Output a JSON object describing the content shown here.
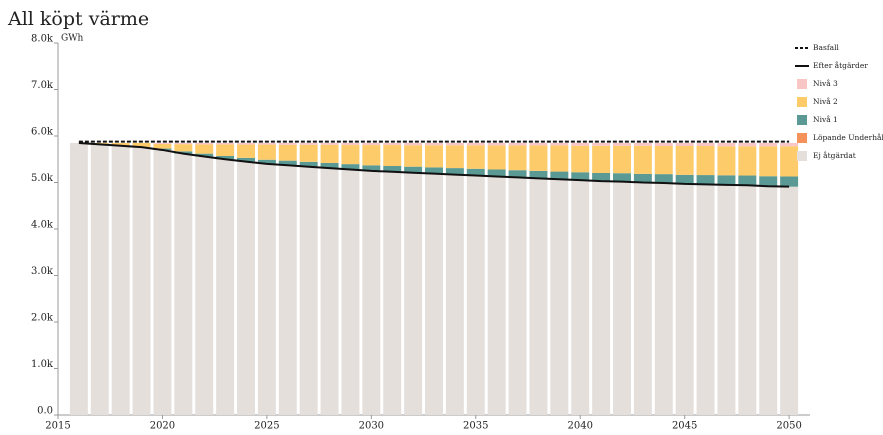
{
  "chart_data": {
    "type": "bar",
    "title": "All köpt värme",
    "y_unit": "GWh",
    "x": [
      2016,
      2017,
      2018,
      2019,
      2020,
      2021,
      2022,
      2023,
      2024,
      2025,
      2026,
      2027,
      2028,
      2029,
      2030,
      2031,
      2032,
      2033,
      2034,
      2035,
      2036,
      2037,
      2038,
      2039,
      2040,
      2041,
      2042,
      2043,
      2044,
      2045,
      2046,
      2047,
      2048,
      2049,
      2050
    ],
    "xlim": [
      2015,
      2051
    ],
    "xticks": [
      2015,
      2020,
      2025,
      2030,
      2035,
      2040,
      2045,
      2050
    ],
    "ylim": [
      0,
      8000
    ],
    "yticks": [
      {
        "value": 0,
        "label": "0.0"
      },
      {
        "value": 1000,
        "label": "1.0k"
      },
      {
        "value": 2000,
        "label": "2.0k"
      },
      {
        "value": 3000,
        "label": "3.0k"
      },
      {
        "value": 4000,
        "label": "4.0k"
      },
      {
        "value": 5000,
        "label": "5.0k"
      },
      {
        "value": 6000,
        "label": "6.0k"
      },
      {
        "value": 7000,
        "label": "7.0k"
      },
      {
        "value": 8000,
        "label": "8.0k"
      }
    ],
    "series": [
      {
        "name": "Basfall",
        "type": "line",
        "dashed": true,
        "color": "#111111",
        "values": [
          5880,
          5880,
          5880,
          5880,
          5880,
          5880,
          5880,
          5880,
          5880,
          5880,
          5880,
          5880,
          5880,
          5880,
          5880,
          5880,
          5880,
          5880,
          5880,
          5880,
          5880,
          5880,
          5880,
          5880,
          5880,
          5880,
          5880,
          5880,
          5880,
          5880,
          5880,
          5880,
          5880,
          5880,
          5880
        ]
      },
      {
        "name": "Efter åtgärder",
        "type": "line",
        "dashed": false,
        "color": "#111111",
        "values": [
          5850,
          5820,
          5790,
          5760,
          5700,
          5620,
          5560,
          5500,
          5450,
          5400,
          5370,
          5340,
          5310,
          5280,
          5250,
          5230,
          5210,
          5190,
          5170,
          5150,
          5130,
          5110,
          5090,
          5070,
          5050,
          5030,
          5020,
          5000,
          4990,
          4970,
          4960,
          4950,
          4940,
          4920,
          4910
        ]
      },
      {
        "name": "Nivå 3",
        "type": "bar",
        "color": "#f9c6c6",
        "values": [
          0,
          0,
          0,
          0,
          20,
          25,
          30,
          30,
          35,
          35,
          40,
          40,
          40,
          45,
          45,
          45,
          50,
          50,
          50,
          50,
          55,
          55,
          55,
          55,
          60,
          60,
          60,
          60,
          65,
          65,
          65,
          70,
          70,
          70,
          70
        ]
      },
      {
        "name": "Nivå 2",
        "type": "bar",
        "color": "#fecb6a",
        "values": [
          0,
          30,
          60,
          90,
          100,
          155,
          200,
          250,
          285,
          325,
          340,
          365,
          390,
          410,
          435,
          450,
          460,
          475,
          490,
          505,
          515,
          530,
          545,
          560,
          570,
          585,
          590,
          605,
          605,
          620,
          625,
          625,
          630,
          645,
          650
        ]
      },
      {
        "name": "Nivå 1",
        "type": "bar",
        "color": "#5b9a94",
        "values": [
          0,
          0,
          0,
          0,
          30,
          50,
          60,
          70,
          80,
          90,
          100,
          105,
          110,
          115,
          120,
          125,
          130,
          135,
          140,
          145,
          150,
          155,
          160,
          165,
          170,
          175,
          180,
          185,
          190,
          195,
          200,
          205,
          210,
          215,
          220
        ]
      },
      {
        "name": "Löpande Underhåll",
        "type": "bar",
        "color": "#f4925a",
        "values": [
          0,
          0,
          0,
          0,
          0,
          0,
          0,
          0,
          0,
          0,
          0,
          0,
          0,
          0,
          0,
          0,
          0,
          0,
          0,
          0,
          0,
          0,
          0,
          0,
          0,
          0,
          0,
          0,
          0,
          0,
          0,
          0,
          0,
          0,
          0
        ]
      },
      {
        "name": "Ej åtgärdat",
        "type": "bar",
        "color": "#e4dfdb",
        "values": [
          5850,
          5820,
          5790,
          5760,
          5700,
          5620,
          5560,
          5500,
          5450,
          5400,
          5370,
          5340,
          5310,
          5280,
          5250,
          5230,
          5210,
          5190,
          5170,
          5150,
          5130,
          5110,
          5090,
          5070,
          5050,
          5030,
          5020,
          5000,
          4990,
          4970,
          4960,
          4950,
          4940,
          4920,
          4910
        ]
      }
    ]
  }
}
